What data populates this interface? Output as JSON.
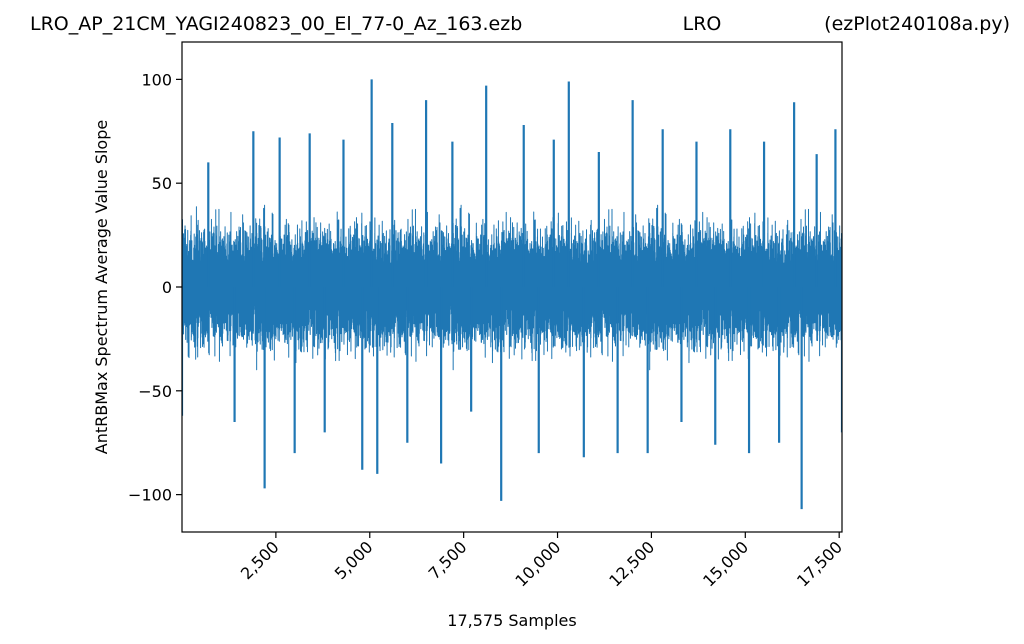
{
  "chart_data": {
    "type": "line",
    "title_left": "LRO_AP_21CM_YAGI240823_00_El_77-0_Az_163.ezb",
    "title_center": "LRO",
    "title_right": "(ezPlot240108a.py)",
    "xlabel": "17,575 Samples",
    "ylabel": "AntRBMax Spectrum Average Value Slope",
    "xlim": [
      0,
      17575
    ],
    "ylim": [
      -118,
      118
    ],
    "xticks": [
      {
        "value": 2500,
        "label": "2,500"
      },
      {
        "value": 5000,
        "label": "5,000"
      },
      {
        "value": 7500,
        "label": "7,500"
      },
      {
        "value": 10000,
        "label": "10,000"
      },
      {
        "value": 12500,
        "label": "12,500"
      },
      {
        "value": 15000,
        "label": "15,000"
      },
      {
        "value": 17500,
        "label": "17,500"
      }
    ],
    "yticks": [
      {
        "value": 100,
        "label": "100"
      },
      {
        "value": 50,
        "label": "50"
      },
      {
        "value": 0,
        "label": "0"
      },
      {
        "value": -50,
        "label": "−50"
      },
      {
        "value": -100,
        "label": "−100"
      }
    ],
    "line_color": "#1f77b4",
    "series": [
      {
        "sample_count": 17575,
        "x": [
          0,
          700,
          1400,
          1900,
          2200,
          2600,
          3000,
          3400,
          3800,
          4300,
          4800,
          5050,
          5200,
          5600,
          6000,
          6500,
          6900,
          7200,
          7700,
          8100,
          8500,
          9100,
          9500,
          9900,
          10300,
          10700,
          11100,
          11600,
          12000,
          12400,
          12800,
          13300,
          13700,
          14200,
          14600,
          15100,
          15500,
          15900,
          16300,
          16500,
          16900,
          17400,
          17575
        ],
        "y": [
          -62,
          60,
          -65,
          75,
          -97,
          72,
          -80,
          74,
          -70,
          71,
          -88,
          100,
          -90,
          79,
          -75,
          90,
          -85,
          70,
          -60,
          97,
          -103,
          78,
          -80,
          71,
          99,
          -82,
          65,
          -80,
          90,
          -80,
          76,
          -65,
          70,
          -76,
          76,
          -80,
          70,
          -75,
          89,
          -107,
          64,
          76,
          -70
        ]
      }
    ]
  }
}
